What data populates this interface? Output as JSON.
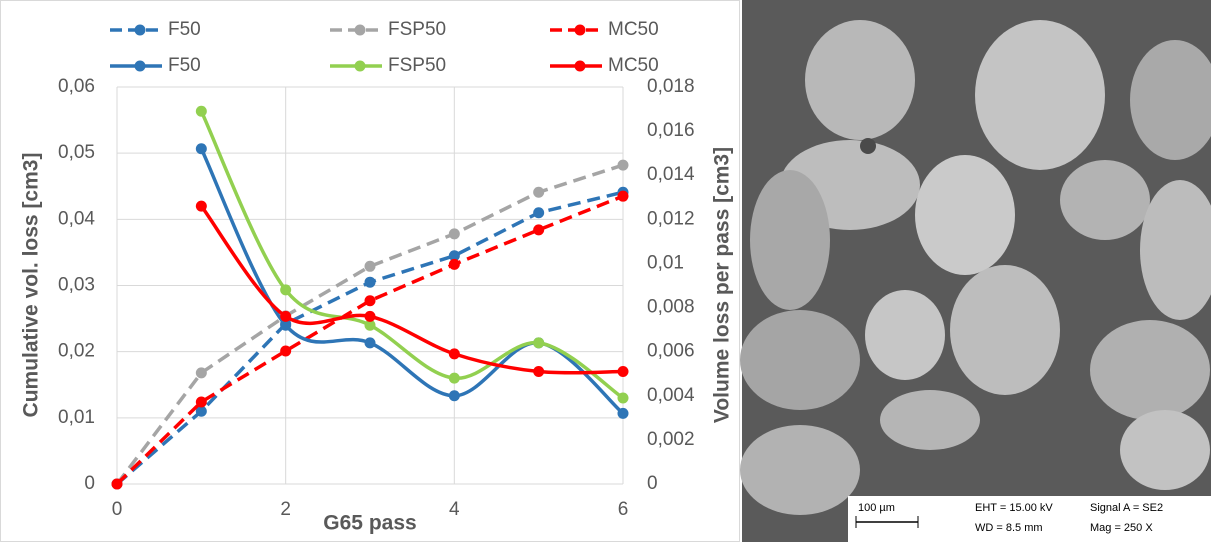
{
  "chart_data": {
    "type": "line",
    "legend": "top",
    "grid": true,
    "x": [
      0,
      1,
      2,
      3,
      4,
      5,
      6
    ],
    "xlim": [
      0,
      6
    ],
    "xticks": [
      0,
      2,
      4,
      6
    ],
    "ylim": [
      0,
      0.06
    ],
    "yticks": [
      0,
      {
        "value": 0.01,
        "label": "0,01"
      },
      {
        "value": 0.02,
        "label": "0,02"
      },
      {
        "value": 0.03,
        "label": "0,03"
      },
      {
        "value": 0.04,
        "label": "0,04"
      },
      {
        "value": 0.05,
        "label": "0,05"
      },
      {
        "value": 0.06,
        "label": "0,06"
      }
    ],
    "y2lim": [
      0,
      0.018
    ],
    "y2ticks": [
      0,
      {
        "value": 0.002,
        "label": "0,002"
      },
      {
        "value": 0.004,
        "label": "0,004"
      },
      {
        "value": 0.006,
        "label": "0,006"
      },
      {
        "value": 0.008,
        "label": "0,008"
      },
      {
        "value": 0.01,
        "label": "0,01"
      },
      {
        "value": 0.012,
        "label": "0,012"
      },
      {
        "value": 0.014,
        "label": "0,014"
      },
      {
        "value": 0.016,
        "label": "0,016"
      },
      {
        "value": 0.018,
        "label": "0,018"
      }
    ],
    "x_label": "G65 pass",
    "y_label": "Cumulative vol. loss [cm3]",
    "y2_label": "Volume loss per pass [cm3]",
    "series": [
      {
        "name": "F50",
        "color": "#2e75b6",
        "line_style": "dashed",
        "values": [
          0,
          0.011,
          0.0242,
          0.0305,
          0.0345,
          0.041,
          0.0441
        ]
      },
      {
        "name": "FSP50",
        "color": "#a5a5a5",
        "line_style": "dashed",
        "values": [
          0,
          0.0168,
          0.0254,
          0.0329,
          0.0378,
          0.0441,
          0.0482
        ]
      },
      {
        "name": "MC50",
        "color": "#ff0000",
        "line_style": "dashed",
        "values": [
          0,
          0.0124,
          0.0201,
          0.0277,
          0.0332,
          0.0384,
          0.0435
        ]
      },
      {
        "name": "F50",
        "color": "#2e75b6",
        "line_style": "solid",
        "axis": "y2",
        "x": [
          1,
          2,
          3,
          4,
          5,
          6
        ],
        "values": [
          0.0152,
          0.0072,
          0.0064,
          0.004,
          0.0064,
          0.0032
        ]
      },
      {
        "name": "FSP50",
        "color": "#92d050",
        "line_style": "solid",
        "axis": "y2",
        "x": [
          1,
          2,
          3,
          4,
          5,
          6
        ],
        "values": [
          0.0169,
          0.0088,
          0.0072,
          0.0048,
          0.0064,
          0.0039
        ]
      },
      {
        "name": "MC50",
        "color": "#ff0000",
        "line_style": "solid",
        "axis": "y2",
        "x": [
          1,
          2,
          3,
          4,
          5,
          6
        ],
        "values": [
          0.0126,
          0.0076,
          0.0076,
          0.0059,
          0.0051,
          0.0051
        ]
      }
    ]
  },
  "sem_image": {
    "scale_bar": "100 µm",
    "info": [
      "EHT = 15.00 kV",
      "Signal A = SE2",
      "WD =  8.5 mm",
      "Mag =   250 X"
    ]
  }
}
